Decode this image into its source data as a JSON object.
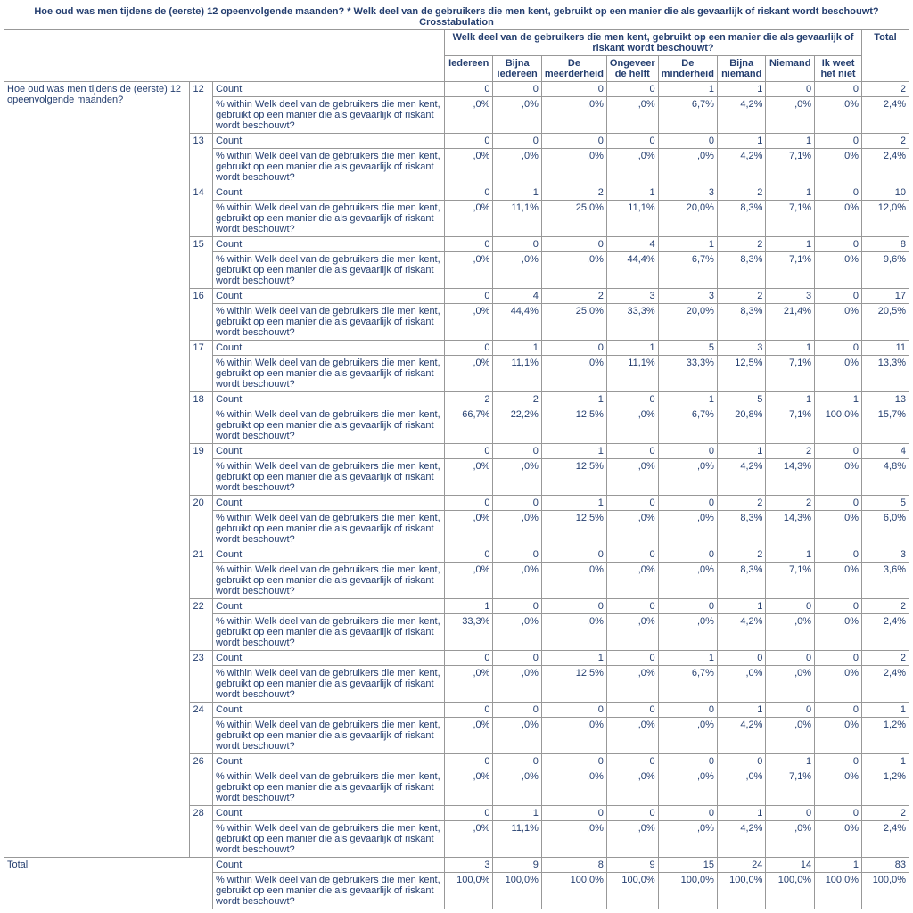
{
  "title": "Hoe oud was men tijdens de (eerste) 12 opeenvolgende maanden? * Welk deel van de gebruikers die men kent, gebruikt op een manier die als gevaarlijk of riskant wordt beschouwt? Crosstabulation",
  "colGroupHeader": "Welk deel van de gebruikers die men kent, gebruikt op een manier die als gevaarlijk of riskant wordt beschouwt?",
  "columns": [
    "Iedereen",
    "Bijna iedereen",
    "De meerderheid",
    "Ongeveer de helft",
    "De minderheid",
    "Bijna niemand",
    "Niemand",
    "Ik weet het niet",
    "Total"
  ],
  "rowGroupHeader": "Hoe oud was men tijdens de (eerste) 12 opeenvolgende maanden?",
  "measureCount": "Count",
  "measurePct": "% within Welk deel van de gebruikers die men kent, gebruikt op een manier die als gevaarlijk of riskant wordt beschouwt?",
  "ages": [
    "12",
    "13",
    "14",
    "15",
    "16",
    "17",
    "18",
    "19",
    "20",
    "21",
    "22",
    "23",
    "24",
    "26",
    "28"
  ],
  "data": {
    "12": {
      "count": [
        "0",
        "0",
        "0",
        "0",
        "1",
        "1",
        "0",
        "0",
        "2"
      ],
      "pct": [
        ",0%",
        ",0%",
        ",0%",
        ",0%",
        "6,7%",
        "4,2%",
        ",0%",
        ",0%",
        "2,4%"
      ]
    },
    "13": {
      "count": [
        "0",
        "0",
        "0",
        "0",
        "0",
        "1",
        "1",
        "0",
        "2"
      ],
      "pct": [
        ",0%",
        ",0%",
        ",0%",
        ",0%",
        ",0%",
        "4,2%",
        "7,1%",
        ",0%",
        "2,4%"
      ]
    },
    "14": {
      "count": [
        "0",
        "1",
        "2",
        "1",
        "3",
        "2",
        "1",
        "0",
        "10"
      ],
      "pct": [
        ",0%",
        "11,1%",
        "25,0%",
        "11,1%",
        "20,0%",
        "8,3%",
        "7,1%",
        ",0%",
        "12,0%"
      ]
    },
    "15": {
      "count": [
        "0",
        "0",
        "0",
        "4",
        "1",
        "2",
        "1",
        "0",
        "8"
      ],
      "pct": [
        ",0%",
        ",0%",
        ",0%",
        "44,4%",
        "6,7%",
        "8,3%",
        "7,1%",
        ",0%",
        "9,6%"
      ]
    },
    "16": {
      "count": [
        "0",
        "4",
        "2",
        "3",
        "3",
        "2",
        "3",
        "0",
        "17"
      ],
      "pct": [
        ",0%",
        "44,4%",
        "25,0%",
        "33,3%",
        "20,0%",
        "8,3%",
        "21,4%",
        ",0%",
        "20,5%"
      ]
    },
    "17": {
      "count": [
        "0",
        "1",
        "0",
        "1",
        "5",
        "3",
        "1",
        "0",
        "11"
      ],
      "pct": [
        ",0%",
        "11,1%",
        ",0%",
        "11,1%",
        "33,3%",
        "12,5%",
        "7,1%",
        ",0%",
        "13,3%"
      ]
    },
    "18": {
      "count": [
        "2",
        "2",
        "1",
        "0",
        "1",
        "5",
        "1",
        "1",
        "13"
      ],
      "pct": [
        "66,7%",
        "22,2%",
        "12,5%",
        ",0%",
        "6,7%",
        "20,8%",
        "7,1%",
        "100,0%",
        "15,7%"
      ]
    },
    "19": {
      "count": [
        "0",
        "0",
        "1",
        "0",
        "0",
        "1",
        "2",
        "0",
        "4"
      ],
      "pct": [
        ",0%",
        ",0%",
        "12,5%",
        ",0%",
        ",0%",
        "4,2%",
        "14,3%",
        ",0%",
        "4,8%"
      ]
    },
    "20": {
      "count": [
        "0",
        "0",
        "1",
        "0",
        "0",
        "2",
        "2",
        "0",
        "5"
      ],
      "pct": [
        ",0%",
        ",0%",
        "12,5%",
        ",0%",
        ",0%",
        "8,3%",
        "14,3%",
        ",0%",
        "6,0%"
      ]
    },
    "21": {
      "count": [
        "0",
        "0",
        "0",
        "0",
        "0",
        "2",
        "1",
        "0",
        "3"
      ],
      "pct": [
        ",0%",
        ",0%",
        ",0%",
        ",0%",
        ",0%",
        "8,3%",
        "7,1%",
        ",0%",
        "3,6%"
      ]
    },
    "22": {
      "count": [
        "1",
        "0",
        "0",
        "0",
        "0",
        "1",
        "0",
        "0",
        "2"
      ],
      "pct": [
        "33,3%",
        ",0%",
        ",0%",
        ",0%",
        ",0%",
        "4,2%",
        ",0%",
        ",0%",
        "2,4%"
      ]
    },
    "23": {
      "count": [
        "0",
        "0",
        "1",
        "0",
        "1",
        "0",
        "0",
        "0",
        "2"
      ],
      "pct": [
        ",0%",
        ",0%",
        "12,5%",
        ",0%",
        "6,7%",
        ",0%",
        ",0%",
        ",0%",
        "2,4%"
      ]
    },
    "24": {
      "count": [
        "0",
        "0",
        "0",
        "0",
        "0",
        "1",
        "0",
        "0",
        "1"
      ],
      "pct": [
        ",0%",
        ",0%",
        ",0%",
        ",0%",
        ",0%",
        "4,2%",
        ",0%",
        ",0%",
        "1,2%"
      ]
    },
    "26": {
      "count": [
        "0",
        "0",
        "0",
        "0",
        "0",
        "0",
        "1",
        "0",
        "1"
      ],
      "pct": [
        ",0%",
        ",0%",
        ",0%",
        ",0%",
        ",0%",
        ",0%",
        "7,1%",
        ",0%",
        "1,2%"
      ]
    },
    "28": {
      "count": [
        "0",
        "1",
        "0",
        "0",
        "0",
        "1",
        "0",
        "0",
        "2"
      ],
      "pct": [
        ",0%",
        "11,1%",
        ",0%",
        ",0%",
        ",0%",
        "4,2%",
        ",0%",
        ",0%",
        "2,4%"
      ]
    }
  },
  "totalLabel": "Total",
  "total": {
    "count": [
      "3",
      "9",
      "8",
      "9",
      "15",
      "24",
      "14",
      "1",
      "83"
    ],
    "pct": [
      "100,0%",
      "100,0%",
      "100,0%",
      "100,0%",
      "100,0%",
      "100,0%",
      "100,0%",
      "100,0%",
      "100,0%"
    ]
  }
}
